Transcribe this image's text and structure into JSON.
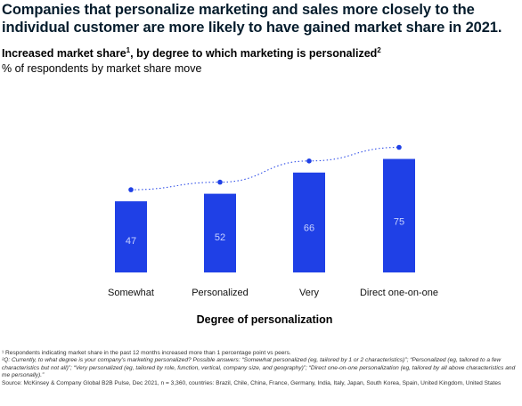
{
  "header": {
    "title": "Companies that personalize marketing and sales more closely to the individual customer are more likely to have gained market share in 2021.",
    "subtitle_main": "Increased market share",
    "subtitle_sup1": "1",
    "subtitle_rest": ", by degree to which marketing is personalized",
    "subtitle_sup2": "2",
    "unit_note": "% of respondents by market share move"
  },
  "chart_data": {
    "type": "bar",
    "categories": [
      "Somewhat",
      "Personalized",
      "Very",
      "Direct one-on-one"
    ],
    "values": [
      47,
      52,
      66,
      75
    ],
    "xlabel": "Degree of personalization",
    "ylabel": "",
    "ylim": [
      0,
      80
    ],
    "grid": false,
    "legend": "none",
    "trend_line": true,
    "colors": {
      "bar": "#1f40e6",
      "bar_label": "#c8d2ff",
      "trend": "#1f40e6"
    }
  },
  "footnotes": {
    "note1": "¹ Respondents indicating market share in the past 12 months increased more than 1 percentage point vs peers.",
    "note2": "²Q: Currently, to what degree is your company’s marketing personalized? Possible answers: “Somewhat personalized (eg, tailored by 1 or 2 characteristics)”; “Personalized (eg, tailored to a few characteristics but not all)”; “Very personalized (eg, tailored by role, function, vertical, company size, and geography)”; “Direct one-on-one personalization (eg, tailored by all above characteristics and me personally).”",
    "source": "Source: McKinsey & Company Global B2B Pulse, Dec 2021, n = 3,360, countries: Brazil, Chile, China, France, Germany, India, Italy, Japan, South Korea, Spain, United Kingdom, United States"
  }
}
